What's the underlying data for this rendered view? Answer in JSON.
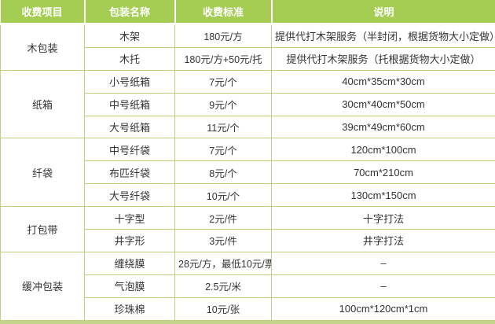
{
  "table": {
    "headers": [
      "收费项目",
      "包装名称",
      "收费标准",
      "说明"
    ],
    "groups": [
      {
        "item": "木包装",
        "rows": [
          {
            "name": "木架",
            "price": "180元/方",
            "note": "提供代打木架服务（半封闭，根据货物大小定做）"
          },
          {
            "name": "木托",
            "price": "180元/方+50元/托",
            "note": "提供代打木架服务（托根据货物大小定做）"
          }
        ]
      },
      {
        "item": "纸箱",
        "rows": [
          {
            "name": "小号纸箱",
            "price": "7元/个",
            "note": "40cm*35cm*30cm"
          },
          {
            "name": "中号纸箱",
            "price": "9元/个",
            "note": "30cm*40cm*50cm"
          },
          {
            "name": "大号纸箱",
            "price": "11元/个",
            "note": "39cm*49cm*60cm"
          }
        ]
      },
      {
        "item": "纤袋",
        "rows": [
          {
            "name": "中号纤袋",
            "price": "7元/个",
            "note": "120cm*100cm"
          },
          {
            "name": "布匹纤袋",
            "price": "8元/个",
            "note": "70cm*210cm"
          },
          {
            "name": "大号纤袋",
            "price": "10元/个",
            "note": "130cm*150cm"
          }
        ]
      },
      {
        "item": "打包带",
        "rows": [
          {
            "name": "十字型",
            "price": "2元/件",
            "note": "十字打法"
          },
          {
            "name": "井字形",
            "price": "3元/件",
            "note": "井字打法"
          }
        ]
      },
      {
        "item": "缓冲包装",
        "rows": [
          {
            "name": "缠绕膜",
            "price": "28元/方，最低10元/票",
            "note": "–"
          },
          {
            "name": "气泡膜",
            "price": "2.5元/米",
            "note": "–"
          },
          {
            "name": "珍珠棉",
            "price": "10元/张",
            "note": "100cm*120cm*1cm"
          }
        ]
      }
    ],
    "colors": {
      "header_bg": "#a5cd53",
      "header_text": "#ffffff",
      "border": "#bdd07f",
      "bottom_border": "#c3d389",
      "text": "#333333"
    }
  }
}
